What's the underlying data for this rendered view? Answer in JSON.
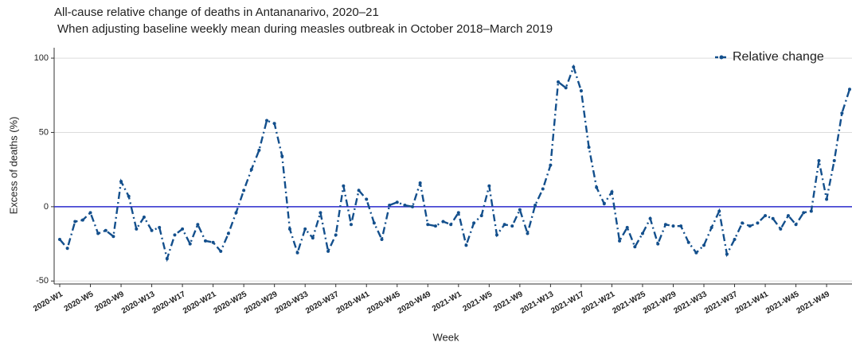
{
  "chart_data": {
    "type": "line",
    "title": "All-cause relative change of deaths in Antananarivo, 2020–21",
    "subtitle": "When adjusting baseline weekly mean during measles outbreak in October 2018–March 2019",
    "x_label": "Week",
    "y_label": "Excess of deaths (%)",
    "categories": [
      "2020-W1",
      null,
      null,
      null,
      "2020-W5",
      null,
      null,
      null,
      "2020-W9",
      null,
      null,
      null,
      "2020-W13",
      null,
      null,
      null,
      "2020-W17",
      null,
      null,
      null,
      "2020-W21",
      null,
      null,
      null,
      "2020-W25",
      null,
      null,
      null,
      "2020-W29",
      null,
      null,
      null,
      "2020-W33",
      null,
      null,
      null,
      "2020-W37",
      null,
      null,
      null,
      "2020-W41",
      null,
      null,
      null,
      "2020-W45",
      null,
      null,
      null,
      "2020-W49",
      null,
      null,
      null,
      "2021-W1",
      null,
      null,
      null,
      "2021-W5",
      null,
      null,
      null,
      "2021-W9",
      null,
      null,
      null,
      "2021-W13",
      null,
      null,
      null,
      "2021-W17",
      null,
      null,
      null,
      "2021-W21",
      null,
      null,
      null,
      "2021-W25",
      null,
      null,
      null,
      "2021-W29",
      null,
      null,
      null,
      "2021-W33",
      null,
      null,
      null,
      "2021-W37",
      null,
      null,
      null,
      "2021-W41",
      null,
      null,
      null,
      "2021-W45",
      null,
      null,
      null,
      "2021-W49",
      null,
      null,
      null
    ],
    "series": [
      {
        "name": "Relative change",
        "color": "#134f8c",
        "values": [
          -22,
          -28,
          -10,
          -9,
          -4,
          -18,
          -16,
          -20,
          17,
          7,
          -15,
          -7,
          -16,
          -14,
          -35,
          -19,
          -15,
          -25,
          -12,
          -23,
          -24,
          -30,
          -18,
          -4,
          11,
          25,
          38,
          58,
          56,
          34,
          -15,
          -31,
          -15,
          -21,
          -4,
          -30,
          -19,
          14,
          -12,
          11,
          5,
          -11,
          -22,
          1,
          3,
          1,
          0,
          16,
          -12,
          -13,
          -10,
          -12,
          -4,
          -26,
          -11,
          -6,
          14,
          -19,
          -12,
          -13,
          -2,
          -18,
          1,
          12,
          28,
          84,
          80,
          94,
          78,
          40,
          13,
          2,
          10,
          -23,
          -14,
          -27,
          -18,
          -8,
          -25,
          -12,
          -13,
          -13,
          -24,
          -31,
          -26,
          -14,
          -3,
          -32,
          -22,
          -11,
          -13,
          -11,
          -6,
          -8,
          -15,
          -6,
          -12,
          -4,
          -3,
          31,
          5,
          31,
          63,
          79
        ]
      }
    ],
    "reference_line": 0,
    "reference_color": "#2b2bcc",
    "ylim": [
      -52,
      107
    ],
    "yticks": [
      -50,
      0,
      50,
      100
    ],
    "grid": true,
    "legend": "top-right"
  }
}
